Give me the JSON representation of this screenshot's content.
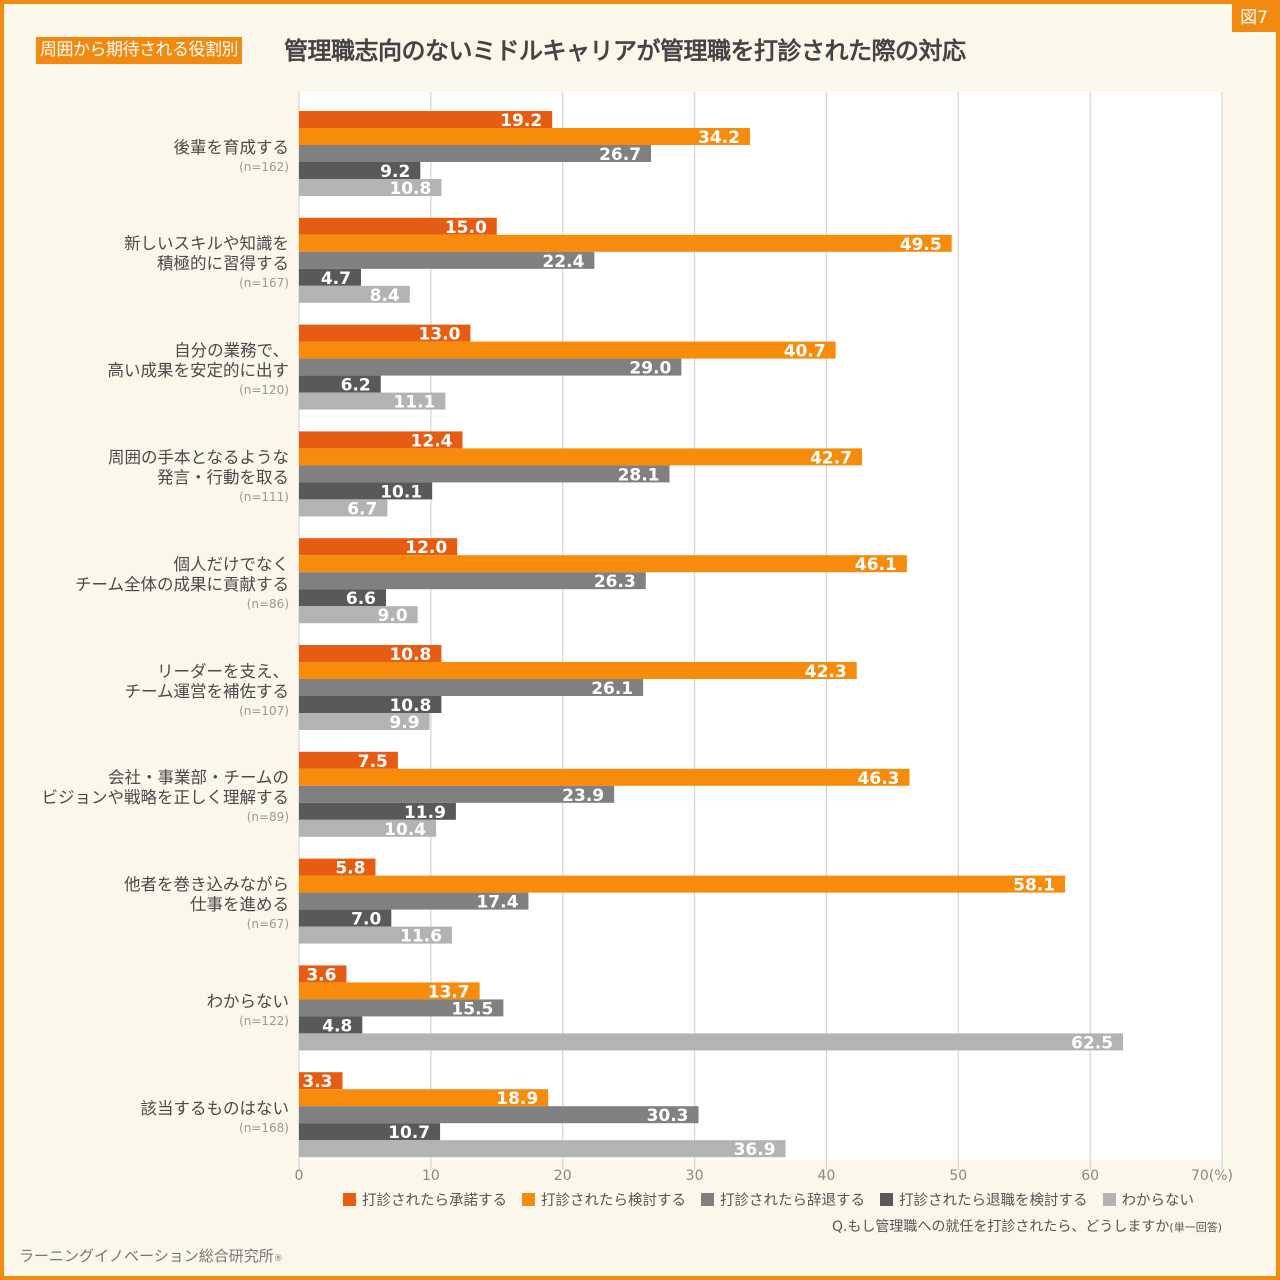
{
  "header": {
    "figure_tag": "図7",
    "category_tag": "周囲から期待される役割別",
    "title": "管理職志向のないミドルキャリアが管理職を打診された際の対応"
  },
  "footer": {
    "question": "Q.もし管理職への就任を打診されたら、どうしますか",
    "question_note": "(単一回答)",
    "source": "ラーニングイノベーション総合研究所",
    "source_mark": "®"
  },
  "chart_data": {
    "type": "bar",
    "orientation": "horizontal",
    "title": "管理職志向のないミドルキャリアが管理職を打診された際の対応",
    "xlabel": "",
    "ylabel": "",
    "xlim": [
      0,
      70
    ],
    "x_ticks": [
      "0",
      "10",
      "20",
      "30",
      "40",
      "50",
      "60",
      "70(%)"
    ],
    "x_tick_values": [
      0,
      10,
      20,
      30,
      40,
      50,
      60,
      70
    ],
    "grid": true,
    "legend_position": "bottom",
    "categories": [
      {
        "lines": [
          "後輩を育成する"
        ],
        "n": "(n=162)"
      },
      {
        "lines": [
          "新しいスキルや知識を",
          "積極的に習得する"
        ],
        "n": "(n=167)"
      },
      {
        "lines": [
          "自分の業務で、",
          "高い成果を安定的に出す"
        ],
        "n": "(n=120)"
      },
      {
        "lines": [
          "周囲の手本となるような",
          "発言・行動を取る"
        ],
        "n": "(n=111)"
      },
      {
        "lines": [
          "個人だけでなく",
          "チーム全体の成果に貢献する"
        ],
        "n": "(n=86)"
      },
      {
        "lines": [
          "リーダーを支え、",
          "チーム運営を補佐する"
        ],
        "n": "(n=107)"
      },
      {
        "lines": [
          "会社・事業部・チームの",
          "ビジョンや戦略を正しく理解する"
        ],
        "n": "(n=89)"
      },
      {
        "lines": [
          "他者を巻き込みながら",
          "仕事を進める"
        ],
        "n": "(n=67)"
      },
      {
        "lines": [
          "わからない"
        ],
        "n": "(n=122)"
      },
      {
        "lines": [
          "該当するものはない"
        ],
        "n": "(n=168)"
      }
    ],
    "series": [
      {
        "name": "打診されたら承諾する",
        "color": "#e65c12",
        "values": [
          19.2,
          15.0,
          13.0,
          12.4,
          12.0,
          10.8,
          7.5,
          5.8,
          3.6,
          3.3
        ]
      },
      {
        "name": "打診されたら検討する",
        "color": "#f78b0c",
        "values": [
          34.2,
          49.5,
          40.7,
          42.7,
          46.1,
          42.3,
          46.3,
          58.1,
          13.7,
          18.9
        ]
      },
      {
        "name": "打診されたら辞退する",
        "color": "#808080",
        "values": [
          26.7,
          22.4,
          29.0,
          28.1,
          26.3,
          26.1,
          23.9,
          17.4,
          15.5,
          30.3
        ]
      },
      {
        "name": "打診されたら退職を検討する",
        "color": "#595959",
        "values": [
          9.2,
          4.7,
          6.2,
          10.1,
          6.6,
          10.8,
          11.9,
          7.0,
          4.8,
          10.7
        ]
      },
      {
        "name": "わからない",
        "color": "#b3b3b3",
        "values": [
          10.8,
          8.4,
          11.1,
          6.7,
          9.0,
          9.9,
          10.4,
          11.6,
          62.5,
          36.9
        ]
      }
    ],
    "outside_label_color": "#e65c12"
  }
}
